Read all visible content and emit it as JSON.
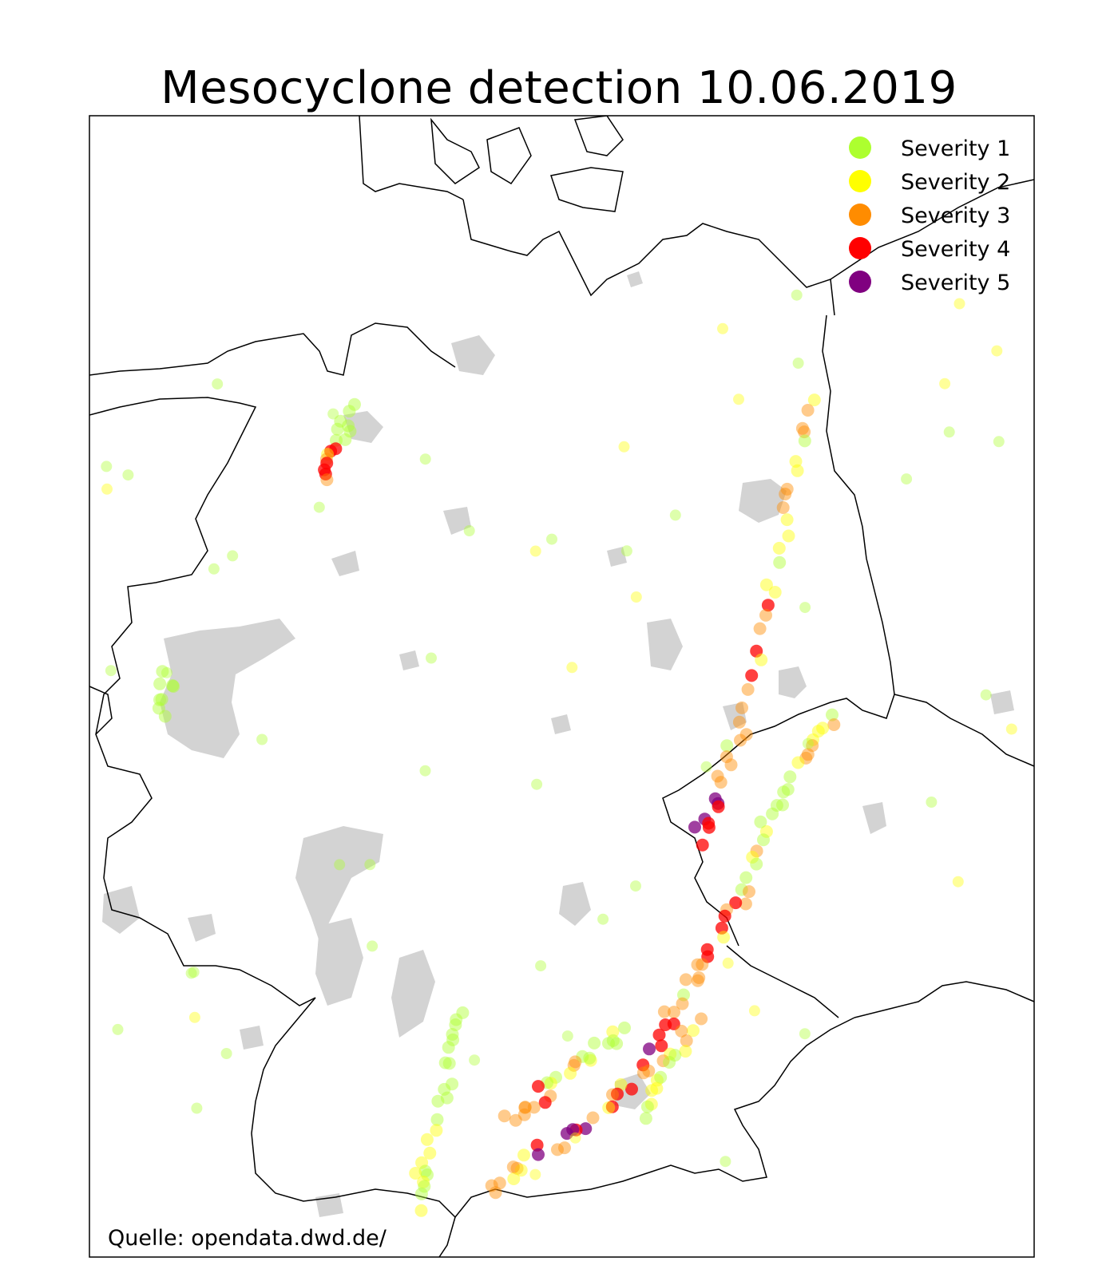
{
  "title": "Mesocyclone detection 10.06.2019",
  "credit": "Quelle: opendata.dwd.de/",
  "legend": {
    "position": "top-right",
    "items": [
      {
        "label": "Severity 1",
        "color": "#adff2f"
      },
      {
        "label": "Severity 2",
        "color": "#ffff00"
      },
      {
        "label": "Severity 3",
        "color": "#ff8c00"
      },
      {
        "label": "Severity 4",
        "color": "#ff0000"
      },
      {
        "label": "Severity 5",
        "color": "#800080"
      }
    ]
  },
  "colors": {
    "urban_areas": "#d3d3d3",
    "borders": "#000000",
    "background": "#ffffff"
  }
}
